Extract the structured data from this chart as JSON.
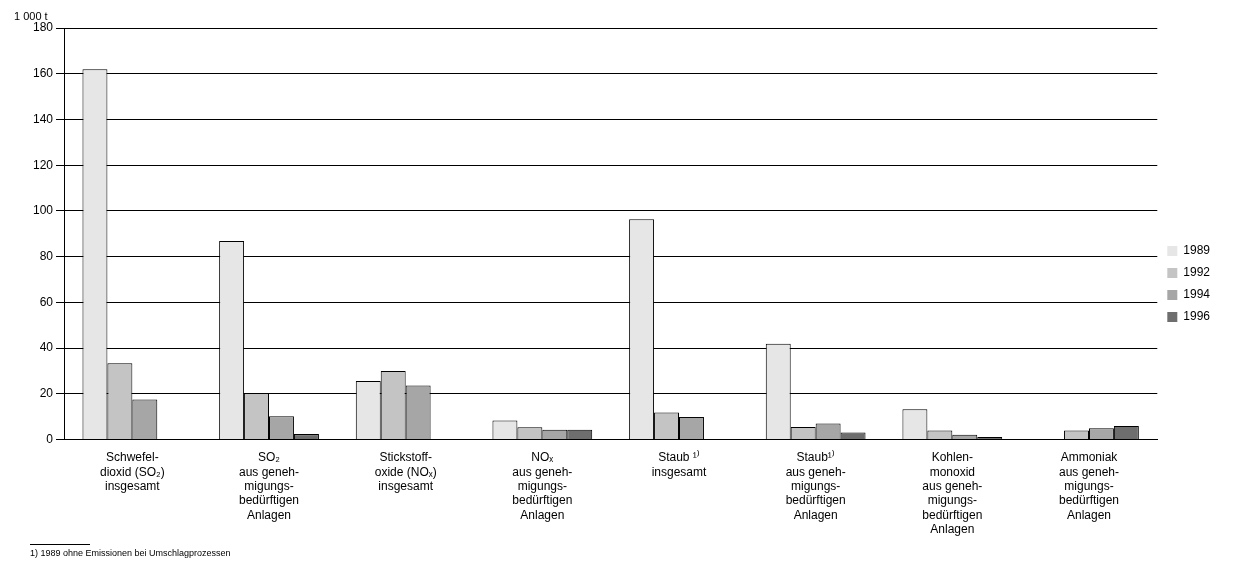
{
  "chart_data": {
    "type": "bar",
    "ylabel": "1 000 t",
    "categories": [
      "Schwefel-\ndioxid (SO₂)\ninsgesamt",
      "SO₂\naus geneh-\nmigungs-\nbedürftigen\nAnlagen",
      "Stickstoff-\noxide (NOₓ)\ninsgesamt",
      "NOₓ\naus geneh-\nmigungs-\nbedürftigen\nAnlagen",
      "Staub ¹⁾\ninsgesamt",
      "Staub¹⁾\naus geneh-\nmigungs-\nbedürftigen\nAnlagen",
      "Kohlen-\nmonoxid\naus geneh-\nmigungs-\nbedürftigen\nAnlagen",
      "Ammoniak\naus geneh-\nmigungs-\nbedürftigen\nAnlagen"
    ],
    "series": [
      {
        "name": "1989",
        "color": "#e6e6e6",
        "values": [
          162,
          86.8,
          25.6,
          8.3,
          96.4,
          41.9,
          13.3,
          null
        ]
      },
      {
        "name": "1992",
        "color": "#c4c4c4",
        "values": [
          33.4,
          20.3,
          30,
          5.4,
          11.8,
          5.5,
          4,
          4
        ]
      },
      {
        "name": "1994",
        "color": "#a6a6a6",
        "values": [
          17.5,
          10.2,
          23.7,
          4.3,
          9.9,
          7,
          2.1,
          5
        ]
      },
      {
        "name": "1996",
        "color": "#6e6e6e",
        "values": [
          null,
          2.4,
          null,
          4.3,
          null,
          3.1,
          1.1,
          6
        ]
      }
    ],
    "ylim": [
      0,
      180
    ],
    "yticks": [
      0,
      20,
      40,
      60,
      80,
      100,
      120,
      140,
      160,
      180
    ],
    "grid": "y",
    "legend": "right",
    "annotations": [
      "1) 1989 ohne Emissionen bei Umschlagprozessen"
    ]
  }
}
